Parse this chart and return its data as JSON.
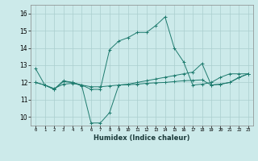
{
  "xlabel": "Humidex (Indice chaleur)",
  "background_color": "#cceaea",
  "grid_color": "#aacece",
  "line_color": "#1e7b6e",
  "xlim": [
    -0.5,
    23.5
  ],
  "ylim": [
    9.5,
    16.5
  ],
  "yticks": [
    10,
    11,
    12,
    13,
    14,
    15,
    16
  ],
  "xticks": [
    0,
    1,
    2,
    3,
    4,
    5,
    6,
    7,
    8,
    9,
    10,
    11,
    12,
    13,
    14,
    15,
    16,
    17,
    18,
    19,
    20,
    21,
    22,
    23
  ],
  "line1_x": [
    0,
    1,
    2,
    3,
    4,
    5,
    6,
    7,
    8,
    9,
    10,
    11,
    12,
    13,
    14,
    15,
    16,
    17,
    18,
    19,
    20,
    21,
    22,
    23
  ],
  "line1_y": [
    12.8,
    11.85,
    11.6,
    12.1,
    12.0,
    11.85,
    11.6,
    11.6,
    13.9,
    14.4,
    14.6,
    14.9,
    14.9,
    15.3,
    15.8,
    14.0,
    13.2,
    11.85,
    11.9,
    12.0,
    12.3,
    12.5,
    12.5,
    12.5
  ],
  "line2_x": [
    0,
    1,
    2,
    3,
    4,
    5,
    6,
    7,
    8,
    9,
    10,
    11,
    12,
    13,
    14,
    15,
    16,
    17,
    18,
    19,
    20,
    21,
    22,
    23
  ],
  "line2_y": [
    12.0,
    11.85,
    11.6,
    12.05,
    12.0,
    11.8,
    9.65,
    9.65,
    10.25,
    11.85,
    11.9,
    12.0,
    12.1,
    12.2,
    12.3,
    12.4,
    12.5,
    12.6,
    13.1,
    11.85,
    11.9,
    12.0,
    12.3,
    12.5
  ],
  "line3_x": [
    0,
    1,
    2,
    3,
    4,
    5,
    6,
    7,
    8,
    9,
    10,
    11,
    12,
    13,
    14,
    15,
    16,
    17,
    18,
    19,
    20,
    21,
    22,
    23
  ],
  "line3_y": [
    12.0,
    11.85,
    11.65,
    11.9,
    11.95,
    11.85,
    11.75,
    11.75,
    11.8,
    11.85,
    11.87,
    11.9,
    11.95,
    11.98,
    12.0,
    12.05,
    12.1,
    12.12,
    12.15,
    11.85,
    11.9,
    12.0,
    12.28,
    12.5
  ]
}
